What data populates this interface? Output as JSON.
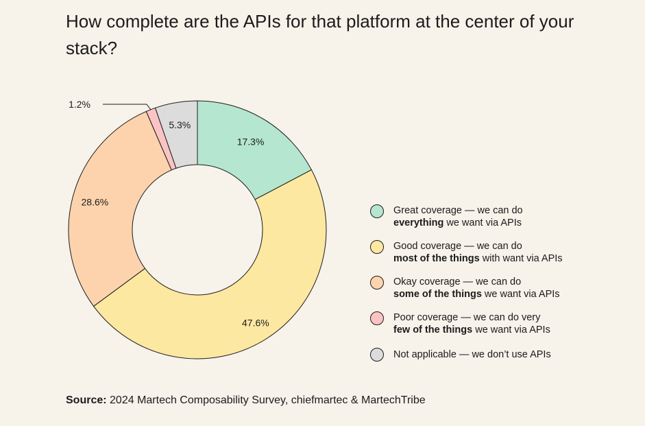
{
  "title": "How complete are the APIs for that platform at the center of your stack?",
  "chart_data": {
    "type": "pie",
    "donut": true,
    "slices": [
      {
        "label": "17.3%",
        "value": 17.3,
        "color": "#b5e6cf"
      },
      {
        "label": "47.6%",
        "value": 47.6,
        "color": "#fde8a2"
      },
      {
        "label": "28.6%",
        "value": 28.6,
        "color": "#fdd3ae"
      },
      {
        "label": "1.2%",
        "value": 1.2,
        "color": "#fbc4c4"
      },
      {
        "label": "5.3%",
        "value": 5.3,
        "color": "#dcdcdc"
      }
    ]
  },
  "legend": [
    {
      "line1": "Great coverage — we can do",
      "bold": "everything",
      "rest": " we want via APIs",
      "color": "#b5e6cf"
    },
    {
      "line1": "Good coverage — we can do",
      "bold": "most of the things",
      "rest": " with want via APIs",
      "color": "#fde8a2"
    },
    {
      "line1": "Okay coverage — we can do",
      "bold": "some of the things",
      "rest": " we want via APIs",
      "color": "#fdd3ae"
    },
    {
      "line1": "Poor coverage — we can do very",
      "bold": "few of the things",
      "rest": " we want via APIs",
      "color": "#fbc4c4"
    },
    {
      "line1": "Not applicable — we don’t use APIs",
      "bold": "",
      "rest": "",
      "color": "#dcdcdc"
    }
  ],
  "source": {
    "label": "Source:",
    "text": " 2024 Martech Composability Survey, chiefmartec & MartechTribe"
  }
}
